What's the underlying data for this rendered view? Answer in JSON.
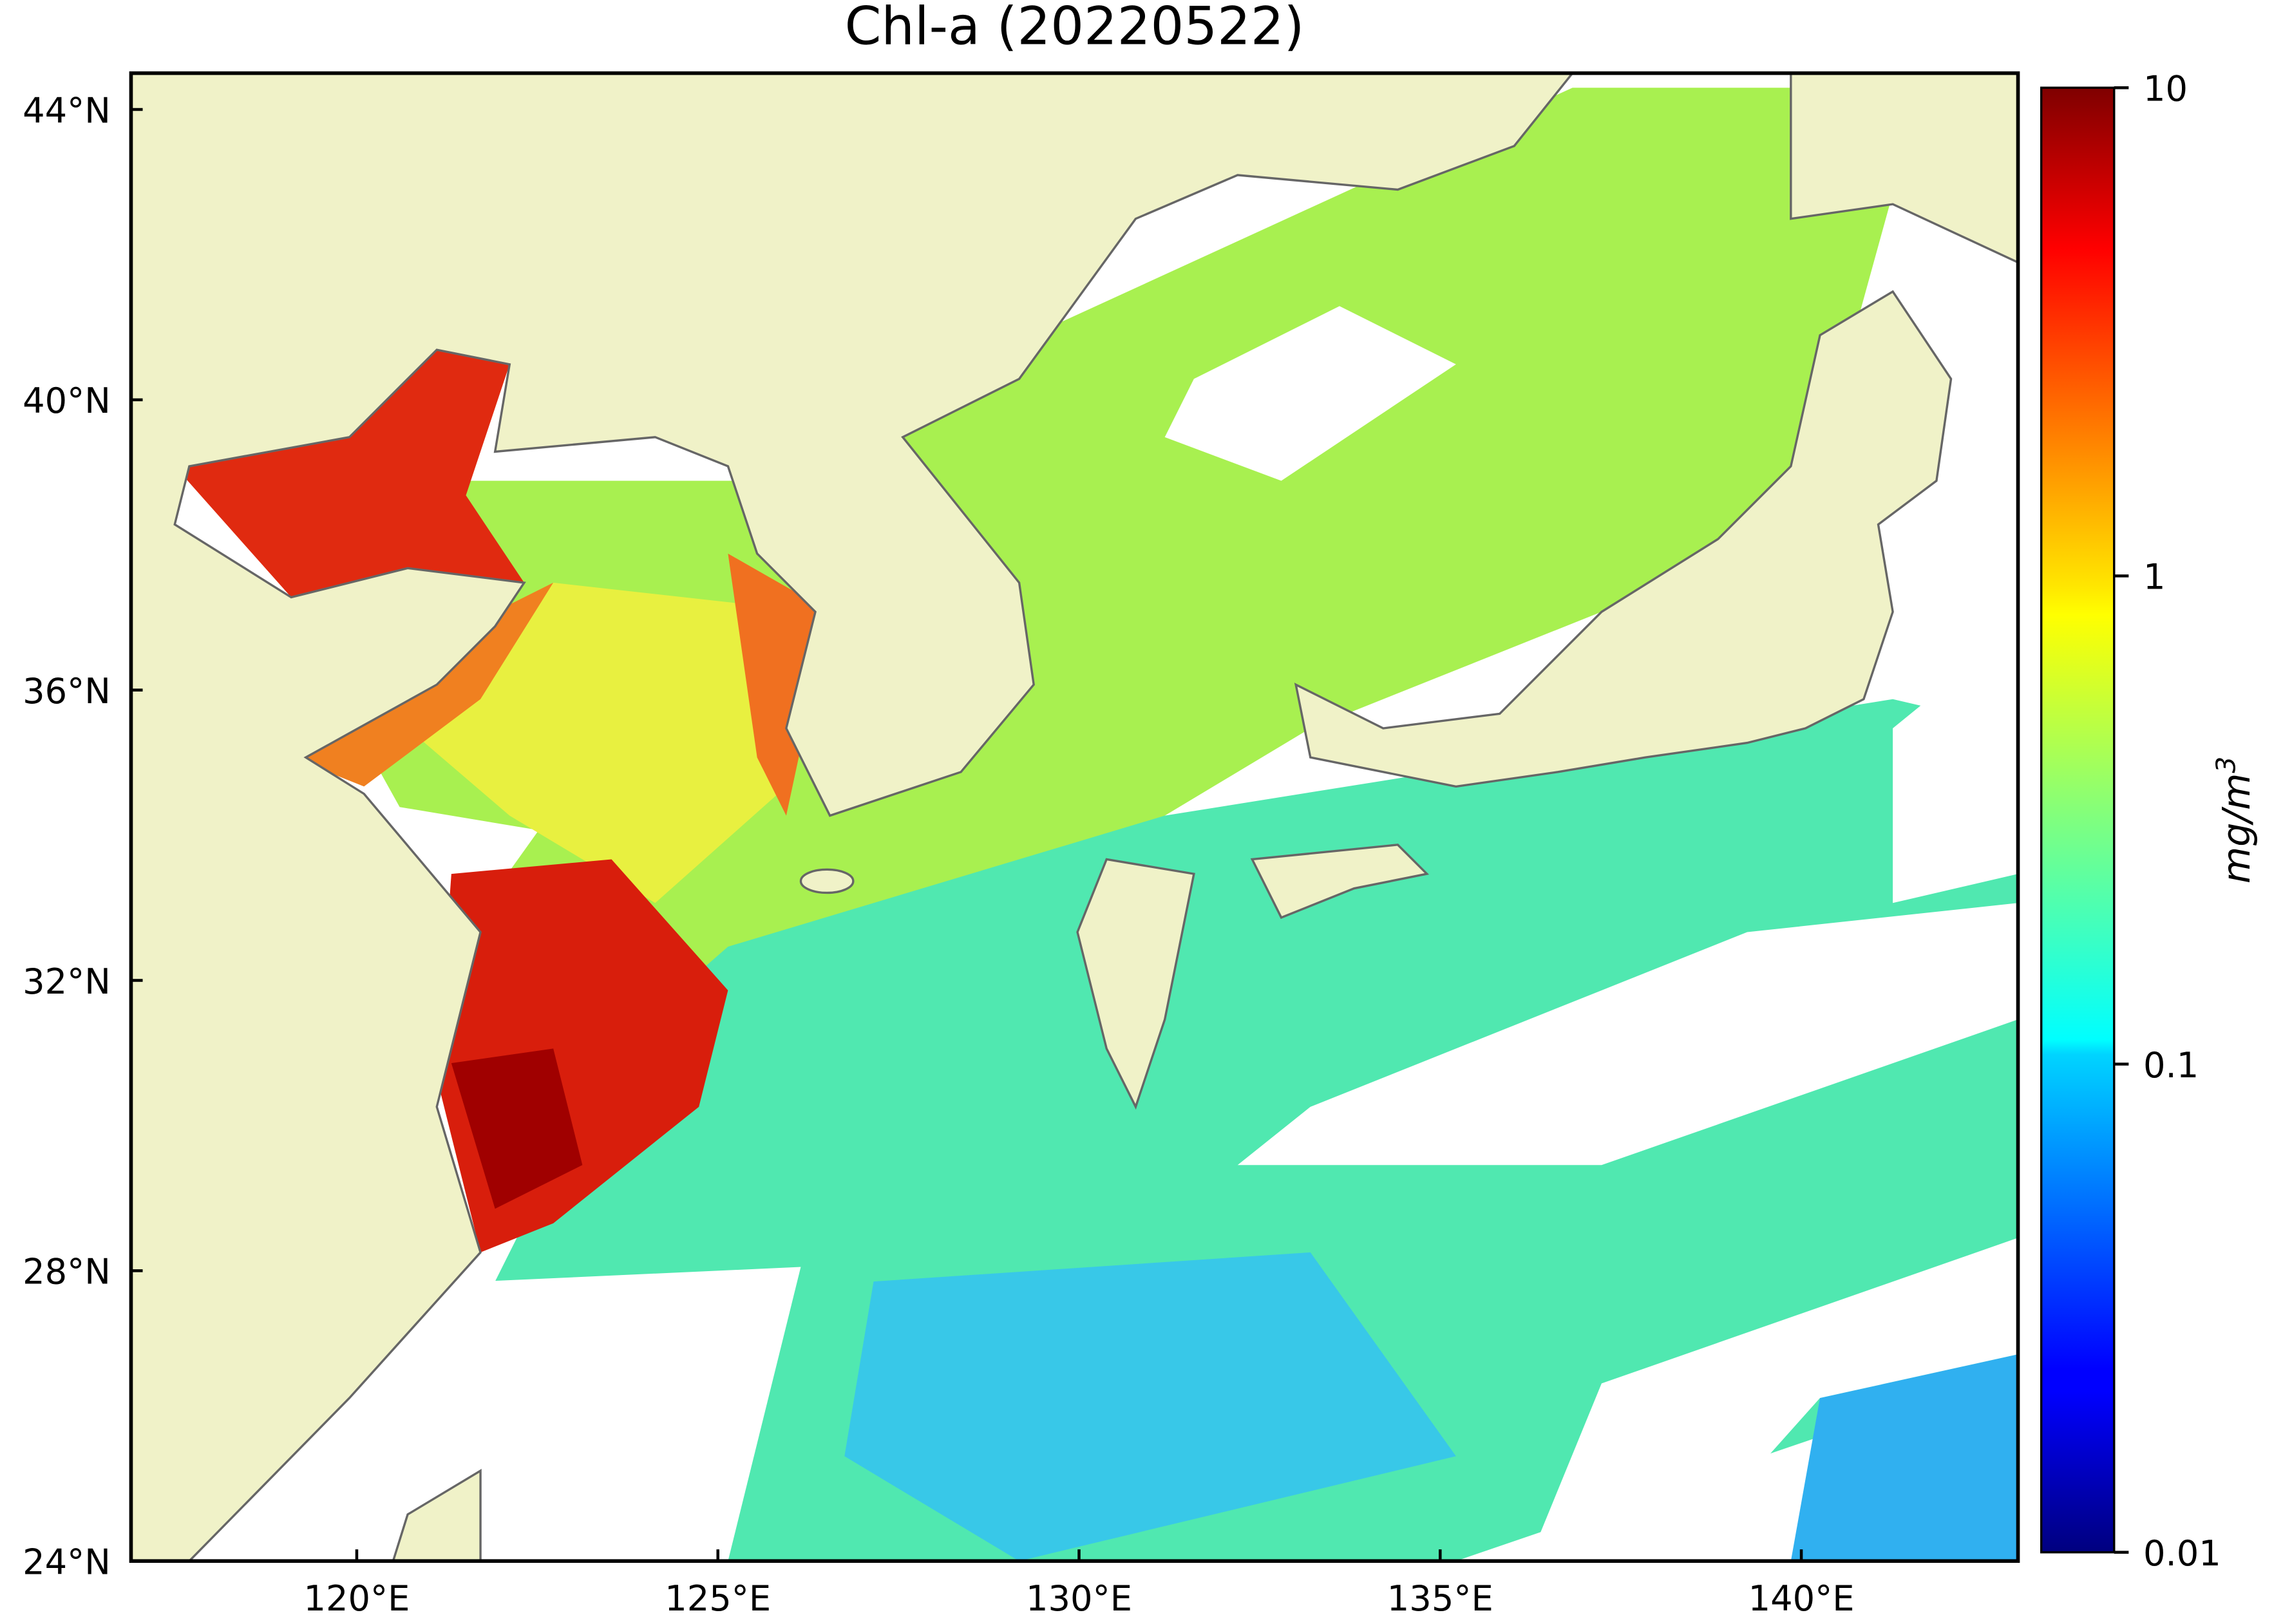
{
  "chart_data": {
    "type": "map",
    "title": "Chl-a (20220522)",
    "xlim": [
      116.875,
      143
    ],
    "ylim": [
      24,
      44.5
    ],
    "xticks": [
      {
        "value": 120,
        "label": "120°E"
      },
      {
        "value": 125,
        "label": "125°E"
      },
      {
        "value": 130,
        "label": "130°E"
      },
      {
        "value": 135,
        "label": "135°E"
      },
      {
        "value": 140,
        "label": "140°E"
      }
    ],
    "yticks": [
      {
        "value": 24,
        "label": "24°N"
      },
      {
        "value": 28,
        "label": "28°N"
      },
      {
        "value": 32,
        "label": "32°N"
      },
      {
        "value": 36,
        "label": "36°N"
      },
      {
        "value": 40,
        "label": "40°N"
      },
      {
        "value": 44,
        "label": "44°N"
      }
    ],
    "colorbar": {
      "scale": "log",
      "colormap": "jet",
      "clim": [
        0.01,
        10
      ],
      "ticks": [
        0.01,
        0.1,
        1,
        10
      ],
      "label": "mg/m",
      "label_sup": "3"
    }
  }
}
